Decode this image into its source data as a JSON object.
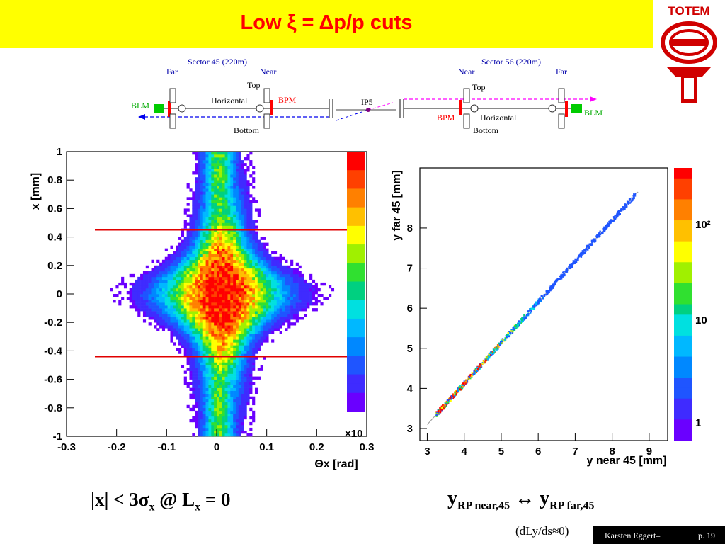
{
  "slide": {
    "title": "Low ξ = Δp/p cuts",
    "logo_text": "TOTEM",
    "footer_note": "(dLy/ds≈0)",
    "footer_author": "Karsten Eggert–",
    "footer_page": "p. 19"
  },
  "diagram": {
    "sector45": "Sector 45 (220m)",
    "sector56": "Sector 56 (220m)",
    "far_left": "Far",
    "near_left": "Near",
    "near_right": "Near",
    "far_right": "Far",
    "top_left": "Top",
    "top_right": "Top",
    "horizontal_left": "Horizontal",
    "horizontal_right": "Horizontal",
    "bottom_left": "Bottom",
    "bottom_right": "Bottom",
    "blm_left": "BLM",
    "blm_right": "BLM",
    "bpm_left": "BPM",
    "bpm_right": "BPM",
    "ip": "IP5",
    "colors": {
      "blm": "#00cc00",
      "bpm": "#ff0000",
      "beam1": "#0000ff",
      "beam2": "#ff00ff"
    }
  },
  "captions": {
    "left": "|x| < 3σx  @ Lx = 0",
    "left_parts": {
      "a": "|x| < 3σ",
      "sub1": "x",
      "b": "  @ L",
      "sub2": "x",
      "c": " = 0"
    },
    "right_parts": {
      "y1": "y",
      "sub1": "RP near,45",
      "arrow": " ↔ ",
      "y2": "y",
      "sub2": "RP far,45"
    }
  },
  "chart_data": [
    {
      "type": "heatmap",
      "xlabel": "Θx [rad]",
      "ylabel": "x [mm]",
      "xlim": [
        -0.3,
        0.3
      ],
      "ylim": [
        -1,
        1
      ],
      "x_ticks": [
        "-0.3",
        "-0.2",
        "-0.1",
        "0",
        "0.1",
        "0.2",
        "0.3"
      ],
      "y_ticks": [
        "-1",
        "-0.8",
        "-0.6",
        "-0.4",
        "-0.2",
        "0",
        "0.2",
        "0.4",
        "0.6",
        "0.8",
        "1"
      ],
      "cut_lines": [
        0.45,
        -0.44
      ],
      "cut_color": "#e00000",
      "colorbar_label": "×10",
      "description_peak": {
        "x": 0.0,
        "y": 0.03
      }
    },
    {
      "type": "scatter",
      "xlabel": "y near 45 [mm]",
      "ylabel": "y far 45 [mm]",
      "xlim": [
        2.8,
        9.5
      ],
      "ylim": [
        2.7,
        9.5
      ],
      "x_ticks": [
        "3",
        "4",
        "5",
        "6",
        "7",
        "8",
        "9"
      ],
      "y_ticks": [
        "3",
        "4",
        "5",
        "6",
        "7",
        "8"
      ],
      "fit_line": {
        "x": [
          3.0,
          8.7
        ],
        "y": [
          3.1,
          8.9
        ]
      },
      "colorbar_ticks": [
        "1",
        "10",
        "10²"
      ]
    }
  ]
}
